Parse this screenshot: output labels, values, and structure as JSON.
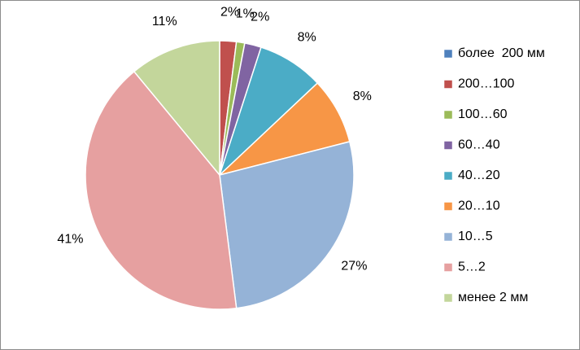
{
  "chart_data": {
    "type": "pie",
    "categories": [
      "более  200 мм",
      "200…100",
      "100…60",
      "60…40",
      "40…20",
      "20…10",
      "10…5",
      "5…2",
      "менее 2 мм"
    ],
    "values": [
      0,
      2,
      1,
      2,
      8,
      8,
      27,
      41,
      11
    ],
    "value_labels": [
      null,
      "2%",
      "1%",
      "2%",
      "8%",
      "8%",
      "27%",
      "41%",
      "11%"
    ],
    "colors": [
      "#4f81bd",
      "#c0504d",
      "#9bbb59",
      "#8064a2",
      "#4bacc6",
      "#f79646",
      "#95b3d7",
      "#e6a0a0",
      "#c3d69b"
    ],
    "legend": "right"
  }
}
